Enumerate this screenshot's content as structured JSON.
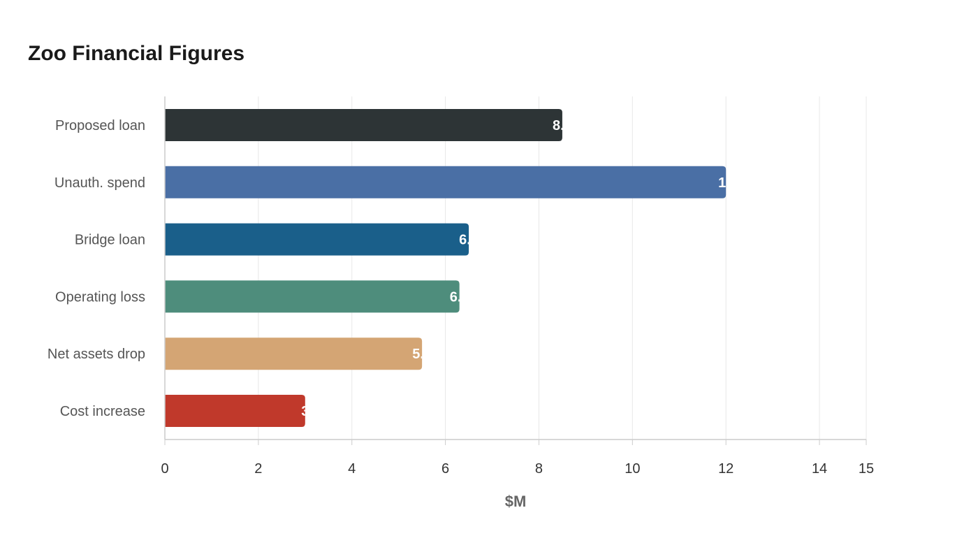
{
  "chart_data": {
    "type": "bar",
    "orientation": "horizontal",
    "title": "Zoo Financial Figures",
    "xlabel": "$M",
    "ylabel": "",
    "categories": [
      "Proposed loan",
      "Unauth. spend",
      "Bridge loan",
      "Operating loss",
      "Net assets drop",
      "Cost increase"
    ],
    "values": [
      8.5,
      12,
      6.5,
      6.3,
      5.5,
      3
    ],
    "colors": [
      "#2d3436",
      "#4a6fa5",
      "#1a5f8a",
      "#4e8d7c",
      "#d4a574",
      "#c0392b"
    ],
    "xlim": [
      0,
      15
    ],
    "xticks": [
      0,
      2,
      4,
      6,
      8,
      10,
      12,
      14,
      15
    ],
    "grid": true,
    "legend": "none"
  }
}
